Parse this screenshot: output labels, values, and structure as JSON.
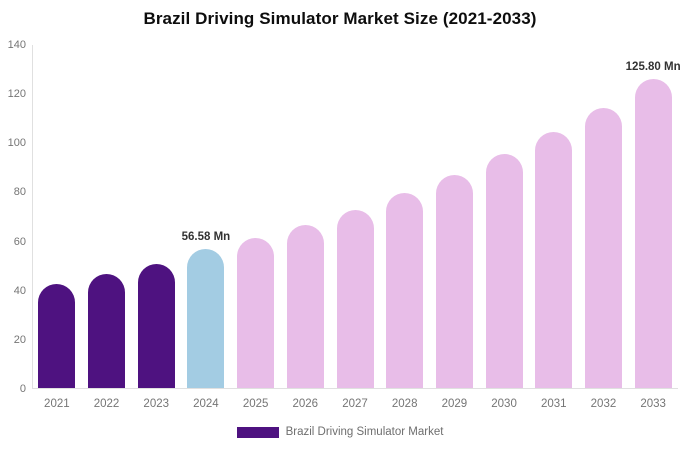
{
  "title": "Brazil Driving Simulator Market Size (2021-2033)",
  "legend": {
    "items": [
      {
        "label": "Brazil Driving Simulator Market",
        "color": "#4e1280"
      }
    ]
  },
  "chart_data": {
    "type": "bar",
    "title": "Brazil Driving Simulator Market Size (2021-2033)",
    "categories": [
      "2021",
      "2022",
      "2023",
      "2024",
      "2025",
      "2026",
      "2027",
      "2028",
      "2029",
      "2030",
      "2031",
      "2032",
      "2033"
    ],
    "values": [
      42.3,
      46.4,
      50.6,
      56.58,
      61.0,
      66.4,
      72.4,
      79.4,
      86.7,
      95.4,
      104.3,
      114.1,
      125.8
    ],
    "unit": "Mn",
    "bar_colors": [
      "#4e1280",
      "#4e1280",
      "#4e1280",
      "#a3cce3",
      "#e8bde8",
      "#e8bde8",
      "#e8bde8",
      "#e8bde8",
      "#e8bde8",
      "#e8bde8",
      "#e8bde8",
      "#e8bde8",
      "#e8bde8"
    ],
    "xlabel": "",
    "ylabel": "",
    "ylim": [
      0,
      140
    ],
    "yticks": [
      0,
      20,
      40,
      60,
      80,
      100,
      120,
      140
    ],
    "grid": false,
    "legend_position": "bottom",
    "legend_entries": [
      "Brazil Driving Simulator Market"
    ],
    "annotations": [
      {
        "category": "2024",
        "text": "56.58 Mn"
      },
      {
        "category": "2033",
        "text": "125.80 Mn"
      }
    ]
  }
}
